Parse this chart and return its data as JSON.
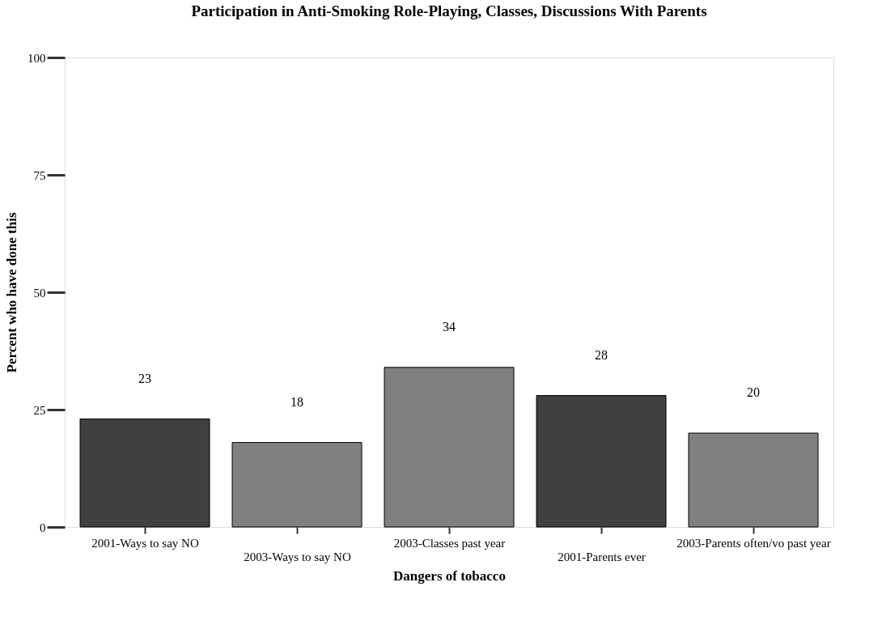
{
  "chart_data": {
    "type": "bar",
    "title": "Participation in Anti-Smoking Role-Playing, Classes, Discussions With Parents",
    "xlabel": "Dangers of tobacco",
    "ylabel": "Percent who have done this",
    "categories": [
      "2001-Ways to say NO",
      "2003-Ways to say NO",
      "2003-Classes past year",
      "2001-Parents ever",
      "2003-Parents often/vo past year"
    ],
    "values": [
      23,
      18,
      34,
      28,
      20
    ],
    "colors": [
      "#404040",
      "#808080",
      "#808080",
      "#404040",
      "#808080"
    ],
    "ylim": [
      0,
      100
    ],
    "yticks": [
      0,
      25,
      50,
      75,
      100
    ],
    "grid": false,
    "data_labels": true
  }
}
